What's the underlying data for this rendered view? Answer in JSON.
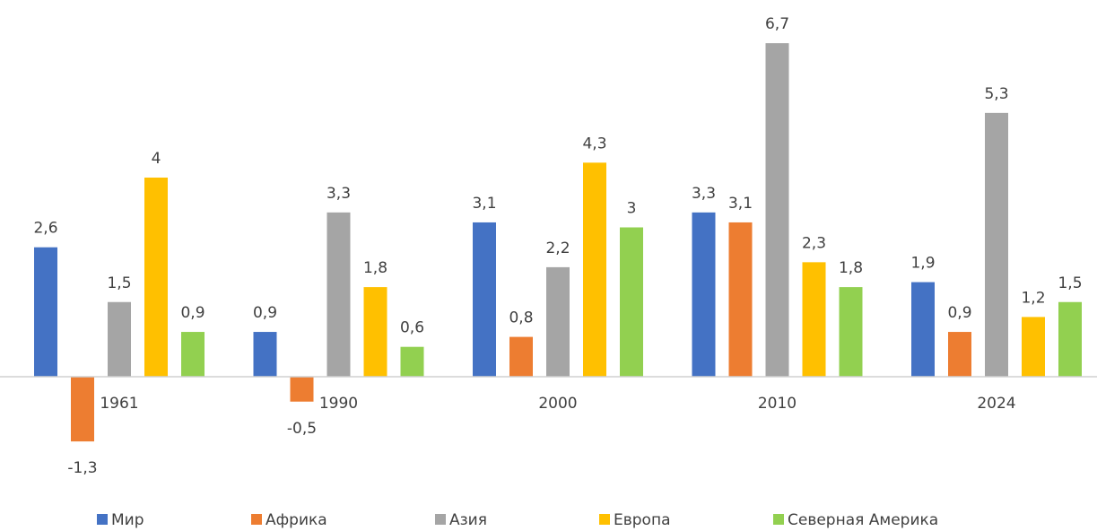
{
  "chart_data": {
    "type": "bar",
    "categories": [
      "1961",
      "1990",
      "2000",
      "2010",
      "2024"
    ],
    "series": [
      {
        "name": "Мир",
        "color": "#4472c4",
        "values": [
          2.6,
          0.9,
          3.1,
          3.3,
          1.9
        ],
        "value_labels": [
          "2,6",
          "0,9",
          "3,1",
          "3,3",
          "1,9"
        ]
      },
      {
        "name": "Африка",
        "color": "#ed7d31",
        "values": [
          -1.3,
          -0.5,
          0.8,
          3.1,
          0.9
        ],
        "value_labels": [
          "-1,3",
          "-0,5",
          "0,8",
          "3,1",
          "0,9"
        ]
      },
      {
        "name": "Азия",
        "color": "#a5a5a5",
        "values": [
          1.5,
          3.3,
          2.2,
          6.7,
          5.3
        ],
        "value_labels": [
          "1,5",
          "3,3",
          "2,2",
          "6,7",
          "5,3"
        ]
      },
      {
        "name": "Европа",
        "color": "#ffc000",
        "values": [
          4,
          1.8,
          4.3,
          2.3,
          1.2
        ],
        "value_labels": [
          "4",
          "1,8",
          "4,3",
          "2,3",
          "1,2"
        ]
      },
      {
        "name": "Северная Америка",
        "color": "#92d050",
        "values": [
          0.9,
          0.6,
          3,
          1.8,
          1.5
        ],
        "value_labels": [
          "0,9",
          "0,6",
          "3",
          "1,8",
          "1,5"
        ]
      }
    ],
    "legend": "bottom"
  }
}
